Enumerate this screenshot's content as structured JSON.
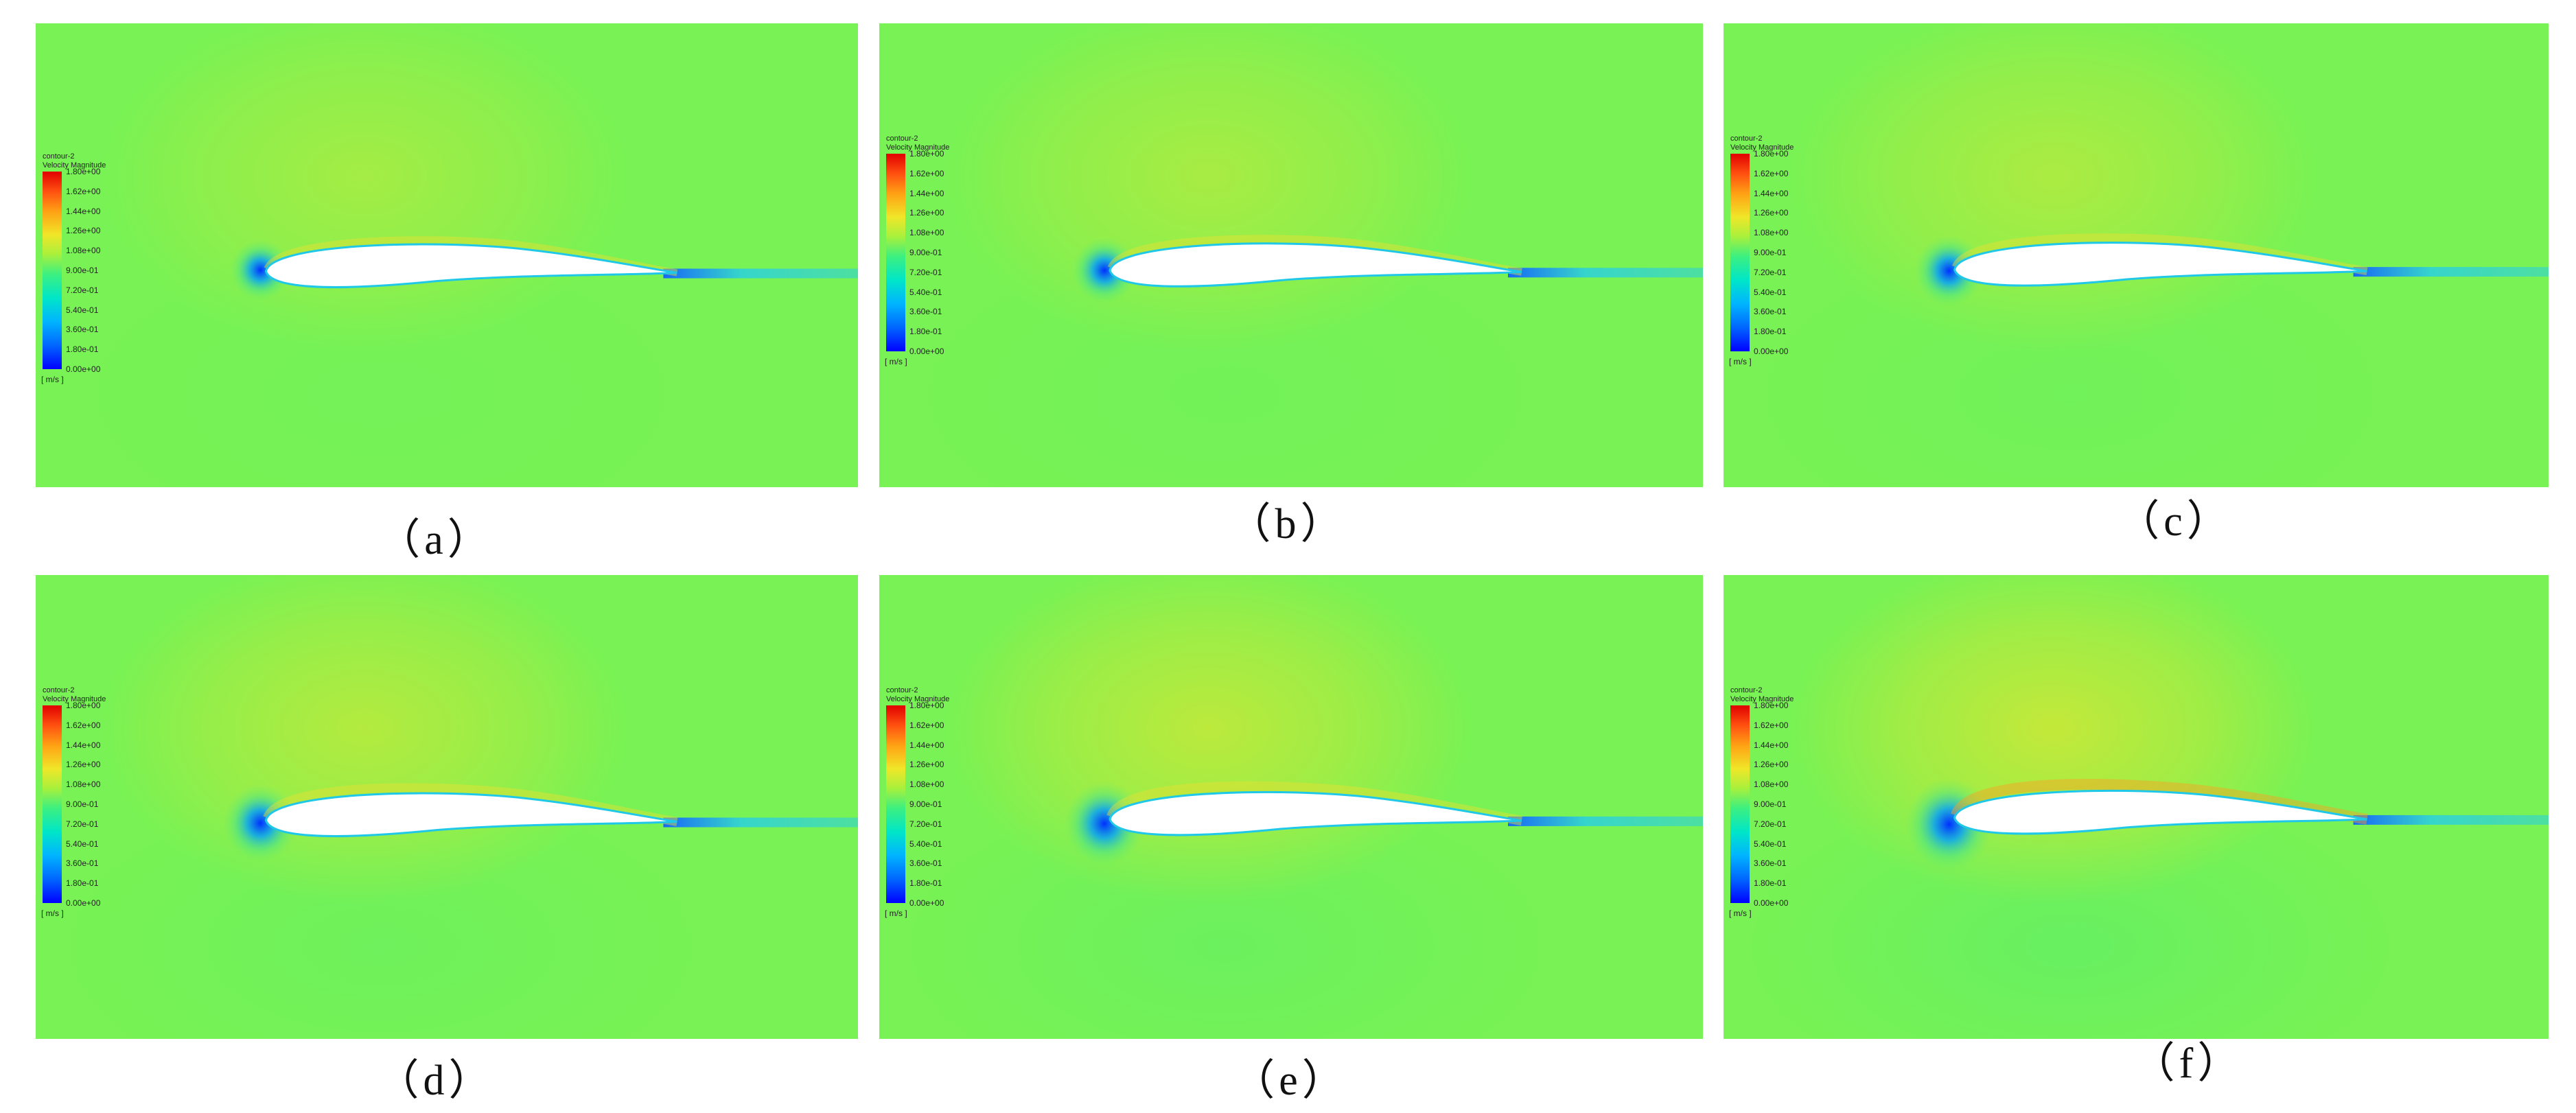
{
  "panels": [
    {
      "id": "a",
      "caption": "（a）"
    },
    {
      "id": "b",
      "caption": "（b）"
    },
    {
      "id": "c",
      "caption": "（c）"
    },
    {
      "id": "d",
      "caption": "（d）"
    },
    {
      "id": "e",
      "caption": "（e）"
    },
    {
      "id": "f",
      "caption": "（f）"
    }
  ],
  "legend": {
    "title": "contour-2",
    "variable": "Velocity Magnitude",
    "unit": "[ m/s ]",
    "ticks": [
      "1.80e+00",
      "1.62e+00",
      "1.44e+00",
      "1.26e+00",
      "1.08e+00",
      "9.00e-01",
      "7.20e-01",
      "5.40e-01",
      "3.60e-01",
      "1.80e-01",
      "0.00e+00"
    ]
  },
  "colors": {
    "field_base": "#78f254",
    "field_high": "#c8e838",
    "field_low": "#5cef6a",
    "stagnation": "#0030ff",
    "wake": "#2ad0e0",
    "colormap_max": "#e00000",
    "colormap_min": "#0000ff"
  }
}
